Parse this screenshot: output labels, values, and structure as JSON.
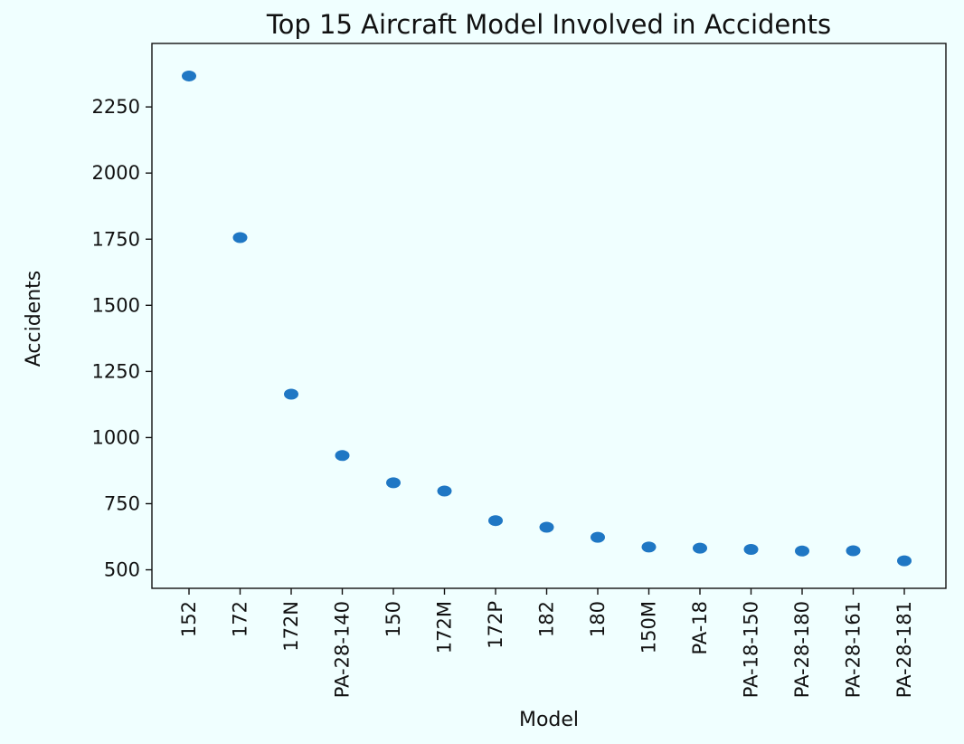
{
  "chart_data": {
    "type": "scatter",
    "title": "Top 15 Aircraft Model Involved in Accidents",
    "xlabel": "Model",
    "ylabel": "Accidents",
    "categories": [
      "152",
      "172",
      "172N",
      "PA-28-140",
      "150",
      "172M",
      "172P",
      "182",
      "180",
      "150M",
      "PA-18",
      "PA-18-150",
      "PA-28-180",
      "PA-28-161",
      "PA-28-181"
    ],
    "values": [
      2367,
      1756,
      1164,
      932,
      829,
      798,
      686,
      661,
      623,
      586,
      582,
      577,
      571,
      572,
      534
    ],
    "yticks": [
      500,
      750,
      1000,
      1250,
      1500,
      1750,
      2000,
      2250
    ],
    "ylim": [
      430,
      2490
    ],
    "grid": false,
    "marker_color": "#1f77c4"
  }
}
